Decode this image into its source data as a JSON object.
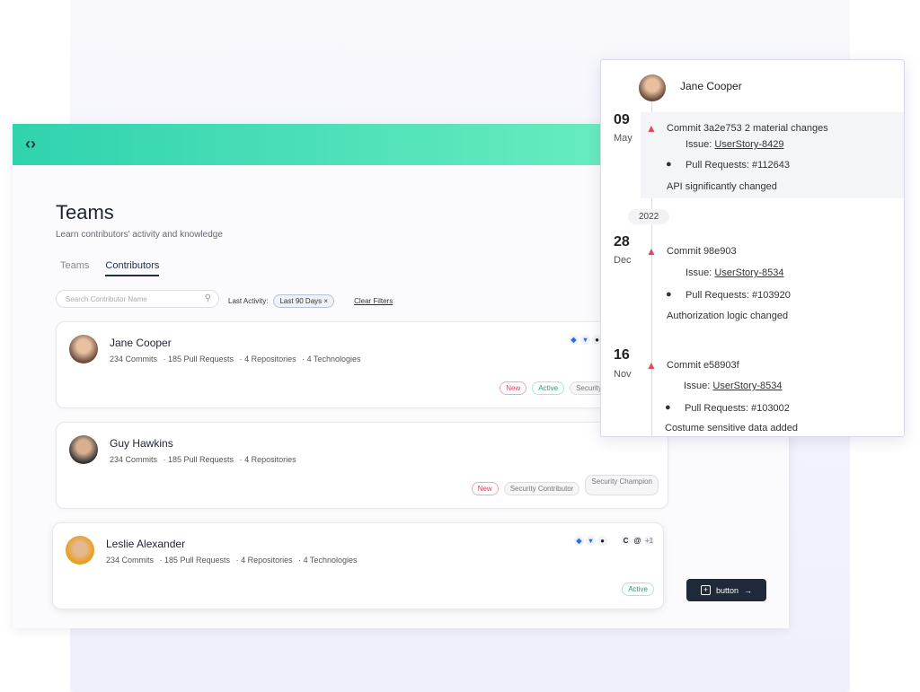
{
  "app": {
    "title": "Teams",
    "subtitle": "Learn contributors' activity and knowledge"
  },
  "tabs": [
    {
      "label": "Teams"
    },
    {
      "label": "Contributors",
      "active": true
    }
  ],
  "search": {
    "placeholder": "Search Contributor Name"
  },
  "filters": {
    "label": "Last Activity:",
    "chip": "Last 90 Days",
    "clear": "Clear Filters"
  },
  "contributors": [
    {
      "name": "Jane Cooper",
      "commits": "234 Commits",
      "prs": "185 Pull Requests",
      "repos": "4 Repositories",
      "tech": "4 Technologies",
      "tags": [
        "New",
        "Active",
        "Security"
      ]
    },
    {
      "name": "Guy Hawkins",
      "commits": "234 Commits",
      "prs": "185 Pull Requests",
      "repos": "4 Repositories",
      "tags": [
        "New",
        "Security Contributor",
        "Security Champion"
      ]
    },
    {
      "name": "Leslie Alexander",
      "commits": "234 Commits",
      "prs": "185 Pull Requests",
      "repos": "4 Repositories",
      "tech": "4 Technologies",
      "tags": [
        "Active"
      ],
      "extra_count": "+1"
    }
  ],
  "button": {
    "label": "button"
  },
  "colors": {
    "header_start": "#2fd3ae",
    "header_end": "#7af3c6",
    "button": "#1e2a3a",
    "warning": "#e04a5a"
  },
  "timeline": {
    "user": "Jane Cooper",
    "year_divider": "2022",
    "events": [
      {
        "day": "09",
        "month": "May",
        "commit": "Commit 3a2e753 2 material changes",
        "issue_label": "Issue:",
        "issue": "UserStory-8429",
        "pr": "Pull Requests: #112643",
        "desc": "API significantly changed"
      },
      {
        "day": "28",
        "month": "Dec",
        "commit": "Commit 98e903",
        "issue_label": "Issue:",
        "issue": "UserStory-8534",
        "pr": "Pull Requests: #103920",
        "desc": "Authorization logic changed"
      },
      {
        "day": "16",
        "month": "Nov",
        "commit": "Commit e58903f",
        "issue_label": "Issue:",
        "issue": "UserStory-8534",
        "pr": "Pull Requests: #103002",
        "desc": "Costume sensitive data added"
      }
    ]
  }
}
